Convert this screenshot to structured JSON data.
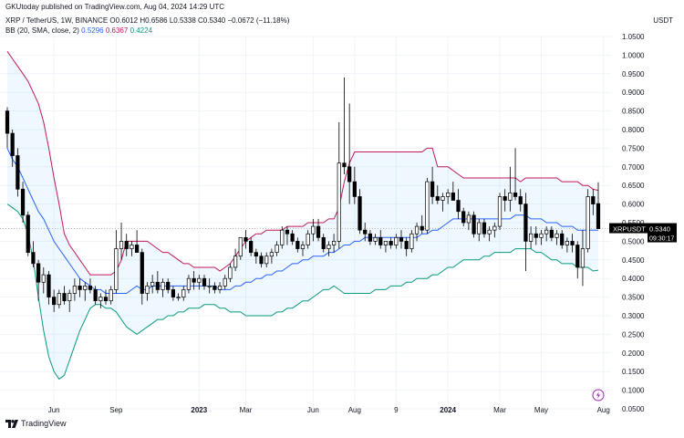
{
  "header": {
    "publish_line": "GKUtoday published on TradingView.com, Aug 04, 2024 14:29 UTC",
    "symbol": "XRP / TetherUS, 1W, BINANCE",
    "o_label": "O",
    "o_value": "0.6012",
    "h_label": "H",
    "h_value": "0.6586",
    "l_label": "L",
    "l_value": "0.5338",
    "c_label": "C",
    "c_value": "0.5340",
    "change": "−0.0672 (−11.18%)",
    "bb_label": "BB (20, SMA, close, 2)",
    "bb_basis": "0.5296",
    "bb_upper": "0.6367",
    "bb_lower": "0.4224",
    "currency": "USDT"
  },
  "footer": {
    "brand": "TradingView"
  },
  "colors": {
    "bb_basis": "#2962ff",
    "bb_upper": "#c2185b",
    "bb_lower": "#089981",
    "bb_fill": "#2196f3",
    "candle_up": "#ffffff",
    "candle_down": "#000000"
  },
  "icons": {
    "time_icon": "lightning-bolt-icon",
    "footer_logo": "tradingview-logo-icon"
  },
  "chart_data": {
    "type": "candlestick",
    "title": "XRP / TetherUS, 1W, BINANCE",
    "timeframe": "1W",
    "x_ticks": [
      "Jun",
      "Sep",
      "2023",
      "Mar",
      "Jun",
      "Aug",
      "9",
      "2024",
      "Mar",
      "May",
      "Aug"
    ],
    "y_ticks": [
      "1.0500",
      "1.0000",
      "0.9500",
      "0.9000",
      "0.8500",
      "0.8000",
      "0.7500",
      "0.7000",
      "0.6500",
      "0.6000",
      "0.5500",
      "0.5000",
      "0.4500",
      "0.4000",
      "0.3500",
      "0.3000",
      "0.2500",
      "0.2000",
      "0.1500",
      "0.1000",
      "0.0500"
    ],
    "ylim": [
      0.05,
      1.05
    ],
    "price_label": {
      "symbol": "XRPUSDT",
      "price": "0.5340",
      "countdown": "09:30:17"
    },
    "candles": [
      {
        "o": 0.85,
        "h": 0.86,
        "l": 0.75,
        "c": 0.79
      },
      {
        "o": 0.79,
        "h": 0.8,
        "l": 0.7,
        "c": 0.73
      },
      {
        "o": 0.73,
        "h": 0.75,
        "l": 0.62,
        "c": 0.64
      },
      {
        "o": 0.64,
        "h": 0.66,
        "l": 0.55,
        "c": 0.57
      },
      {
        "o": 0.57,
        "h": 0.58,
        "l": 0.46,
        "c": 0.47
      },
      {
        "o": 0.47,
        "h": 0.5,
        "l": 0.43,
        "c": 0.44
      },
      {
        "o": 0.44,
        "h": 0.45,
        "l": 0.34,
        "c": 0.39
      },
      {
        "o": 0.39,
        "h": 0.43,
        "l": 0.36,
        "c": 0.41
      },
      {
        "o": 0.41,
        "h": 0.42,
        "l": 0.33,
        "c": 0.35
      },
      {
        "o": 0.35,
        "h": 0.37,
        "l": 0.31,
        "c": 0.33
      },
      {
        "o": 0.33,
        "h": 0.37,
        "l": 0.32,
        "c": 0.36
      },
      {
        "o": 0.36,
        "h": 0.38,
        "l": 0.33,
        "c": 0.34
      },
      {
        "o": 0.34,
        "h": 0.37,
        "l": 0.31,
        "c": 0.36
      },
      {
        "o": 0.36,
        "h": 0.4,
        "l": 0.34,
        "c": 0.38
      },
      {
        "o": 0.38,
        "h": 0.4,
        "l": 0.35,
        "c": 0.37
      },
      {
        "o": 0.37,
        "h": 0.39,
        "l": 0.34,
        "c": 0.38
      },
      {
        "o": 0.38,
        "h": 0.4,
        "l": 0.36,
        "c": 0.37
      },
      {
        "o": 0.37,
        "h": 0.38,
        "l": 0.33,
        "c": 0.34
      },
      {
        "o": 0.34,
        "h": 0.36,
        "l": 0.32,
        "c": 0.35
      },
      {
        "o": 0.35,
        "h": 0.37,
        "l": 0.33,
        "c": 0.34
      },
      {
        "o": 0.34,
        "h": 0.38,
        "l": 0.33,
        "c": 0.37
      },
      {
        "o": 0.37,
        "h": 0.53,
        "l": 0.36,
        "c": 0.48
      },
      {
        "o": 0.48,
        "h": 0.55,
        "l": 0.45,
        "c": 0.5
      },
      {
        "o": 0.5,
        "h": 0.52,
        "l": 0.46,
        "c": 0.48
      },
      {
        "o": 0.48,
        "h": 0.5,
        "l": 0.46,
        "c": 0.49
      },
      {
        "o": 0.49,
        "h": 0.53,
        "l": 0.47,
        "c": 0.47
      },
      {
        "o": 0.47,
        "h": 0.48,
        "l": 0.33,
        "c": 0.36
      },
      {
        "o": 0.36,
        "h": 0.39,
        "l": 0.34,
        "c": 0.38
      },
      {
        "o": 0.38,
        "h": 0.41,
        "l": 0.36,
        "c": 0.39
      },
      {
        "o": 0.39,
        "h": 0.42,
        "l": 0.36,
        "c": 0.37
      },
      {
        "o": 0.37,
        "h": 0.4,
        "l": 0.35,
        "c": 0.39
      },
      {
        "o": 0.39,
        "h": 0.4,
        "l": 0.36,
        "c": 0.37
      },
      {
        "o": 0.37,
        "h": 0.38,
        "l": 0.34,
        "c": 0.35
      },
      {
        "o": 0.35,
        "h": 0.36,
        "l": 0.34,
        "c": 0.35
      },
      {
        "o": 0.35,
        "h": 0.38,
        "l": 0.34,
        "c": 0.37
      },
      {
        "o": 0.37,
        "h": 0.41,
        "l": 0.36,
        "c": 0.4
      },
      {
        "o": 0.4,
        "h": 0.42,
        "l": 0.37,
        "c": 0.39
      },
      {
        "o": 0.39,
        "h": 0.41,
        "l": 0.37,
        "c": 0.4
      },
      {
        "o": 0.4,
        "h": 0.41,
        "l": 0.37,
        "c": 0.38
      },
      {
        "o": 0.38,
        "h": 0.4,
        "l": 0.36,
        "c": 0.38
      },
      {
        "o": 0.38,
        "h": 0.39,
        "l": 0.36,
        "c": 0.37
      },
      {
        "o": 0.37,
        "h": 0.39,
        "l": 0.36,
        "c": 0.38
      },
      {
        "o": 0.38,
        "h": 0.41,
        "l": 0.37,
        "c": 0.4
      },
      {
        "o": 0.4,
        "h": 0.44,
        "l": 0.39,
        "c": 0.43
      },
      {
        "o": 0.43,
        "h": 0.48,
        "l": 0.42,
        "c": 0.46
      },
      {
        "o": 0.46,
        "h": 0.51,
        "l": 0.45,
        "c": 0.51
      },
      {
        "o": 0.51,
        "h": 0.53,
        "l": 0.48,
        "c": 0.5
      },
      {
        "o": 0.5,
        "h": 0.51,
        "l": 0.46,
        "c": 0.47
      },
      {
        "o": 0.47,
        "h": 0.48,
        "l": 0.44,
        "c": 0.46
      },
      {
        "o": 0.46,
        "h": 0.47,
        "l": 0.43,
        "c": 0.44
      },
      {
        "o": 0.44,
        "h": 0.47,
        "l": 0.43,
        "c": 0.46
      },
      {
        "o": 0.46,
        "h": 0.48,
        "l": 0.44,
        "c": 0.47
      },
      {
        "o": 0.47,
        "h": 0.5,
        "l": 0.46,
        "c": 0.49
      },
      {
        "o": 0.49,
        "h": 0.54,
        "l": 0.48,
        "c": 0.53
      },
      {
        "o": 0.53,
        "h": 0.54,
        "l": 0.49,
        "c": 0.52
      },
      {
        "o": 0.52,
        "h": 0.53,
        "l": 0.49,
        "c": 0.5
      },
      {
        "o": 0.5,
        "h": 0.51,
        "l": 0.47,
        "c": 0.48
      },
      {
        "o": 0.48,
        "h": 0.5,
        "l": 0.46,
        "c": 0.49
      },
      {
        "o": 0.49,
        "h": 0.53,
        "l": 0.48,
        "c": 0.52
      },
      {
        "o": 0.52,
        "h": 0.56,
        "l": 0.5,
        "c": 0.54
      },
      {
        "o": 0.54,
        "h": 0.56,
        "l": 0.5,
        "c": 0.51
      },
      {
        "o": 0.51,
        "h": 0.52,
        "l": 0.47,
        "c": 0.48
      },
      {
        "o": 0.48,
        "h": 0.5,
        "l": 0.46,
        "c": 0.49
      },
      {
        "o": 0.49,
        "h": 0.52,
        "l": 0.47,
        "c": 0.5
      },
      {
        "o": 0.5,
        "h": 0.82,
        "l": 0.48,
        "c": 0.71
      },
      {
        "o": 0.71,
        "h": 0.94,
        "l": 0.68,
        "c": 0.7
      },
      {
        "o": 0.7,
        "h": 0.87,
        "l": 0.6,
        "c": 0.66
      },
      {
        "o": 0.66,
        "h": 0.7,
        "l": 0.6,
        "c": 0.62
      },
      {
        "o": 0.62,
        "h": 0.64,
        "l": 0.52,
        "c": 0.53
      },
      {
        "o": 0.53,
        "h": 0.55,
        "l": 0.5,
        "c": 0.52
      },
      {
        "o": 0.52,
        "h": 0.53,
        "l": 0.49,
        "c": 0.5
      },
      {
        "o": 0.5,
        "h": 0.52,
        "l": 0.49,
        "c": 0.51
      },
      {
        "o": 0.51,
        "h": 0.53,
        "l": 0.48,
        "c": 0.49
      },
      {
        "o": 0.49,
        "h": 0.5,
        "l": 0.47,
        "c": 0.5
      },
      {
        "o": 0.5,
        "h": 0.51,
        "l": 0.48,
        "c": 0.49
      },
      {
        "o": 0.49,
        "h": 0.52,
        "l": 0.48,
        "c": 0.51
      },
      {
        "o": 0.51,
        "h": 0.53,
        "l": 0.48,
        "c": 0.5
      },
      {
        "o": 0.5,
        "h": 0.51,
        "l": 0.46,
        "c": 0.48
      },
      {
        "o": 0.48,
        "h": 0.53,
        "l": 0.47,
        "c": 0.52
      },
      {
        "o": 0.52,
        "h": 0.55,
        "l": 0.5,
        "c": 0.54
      },
      {
        "o": 0.54,
        "h": 0.57,
        "l": 0.52,
        "c": 0.53
      },
      {
        "o": 0.53,
        "h": 0.67,
        "l": 0.52,
        "c": 0.66
      },
      {
        "o": 0.66,
        "h": 0.7,
        "l": 0.6,
        "c": 0.62
      },
      {
        "o": 0.62,
        "h": 0.65,
        "l": 0.6,
        "c": 0.61
      },
      {
        "o": 0.61,
        "h": 0.63,
        "l": 0.58,
        "c": 0.62
      },
      {
        "o": 0.62,
        "h": 0.64,
        "l": 0.6,
        "c": 0.63
      },
      {
        "o": 0.63,
        "h": 0.66,
        "l": 0.61,
        "c": 0.61
      },
      {
        "o": 0.61,
        "h": 0.64,
        "l": 0.56,
        "c": 0.58
      },
      {
        "o": 0.58,
        "h": 0.59,
        "l": 0.54,
        "c": 0.55
      },
      {
        "o": 0.55,
        "h": 0.58,
        "l": 0.53,
        "c": 0.57
      },
      {
        "o": 0.57,
        "h": 0.58,
        "l": 0.51,
        "c": 0.52
      },
      {
        "o": 0.52,
        "h": 0.56,
        "l": 0.5,
        "c": 0.55
      },
      {
        "o": 0.55,
        "h": 0.56,
        "l": 0.51,
        "c": 0.52
      },
      {
        "o": 0.52,
        "h": 0.54,
        "l": 0.5,
        "c": 0.53
      },
      {
        "o": 0.53,
        "h": 0.55,
        "l": 0.51,
        "c": 0.54
      },
      {
        "o": 0.54,
        "h": 0.63,
        "l": 0.53,
        "c": 0.62
      },
      {
        "o": 0.62,
        "h": 0.64,
        "l": 0.58,
        "c": 0.61
      },
      {
        "o": 0.61,
        "h": 0.7,
        "l": 0.58,
        "c": 0.63
      },
      {
        "o": 0.63,
        "h": 0.75,
        "l": 0.61,
        "c": 0.62
      },
      {
        "o": 0.62,
        "h": 0.64,
        "l": 0.58,
        "c": 0.6
      },
      {
        "o": 0.6,
        "h": 0.63,
        "l": 0.42,
        "c": 0.5
      },
      {
        "o": 0.5,
        "h": 0.54,
        "l": 0.48,
        "c": 0.52
      },
      {
        "o": 0.52,
        "h": 0.54,
        "l": 0.49,
        "c": 0.51
      },
      {
        "o": 0.51,
        "h": 0.53,
        "l": 0.49,
        "c": 0.52
      },
      {
        "o": 0.52,
        "h": 0.54,
        "l": 0.5,
        "c": 0.53
      },
      {
        "o": 0.53,
        "h": 0.54,
        "l": 0.5,
        "c": 0.51
      },
      {
        "o": 0.51,
        "h": 0.53,
        "l": 0.49,
        "c": 0.52
      },
      {
        "o": 0.52,
        "h": 0.53,
        "l": 0.48,
        "c": 0.49
      },
      {
        "o": 0.49,
        "h": 0.51,
        "l": 0.47,
        "c": 0.5
      },
      {
        "o": 0.5,
        "h": 0.52,
        "l": 0.47,
        "c": 0.49
      },
      {
        "o": 0.49,
        "h": 0.5,
        "l": 0.4,
        "c": 0.43
      },
      {
        "o": 0.43,
        "h": 0.53,
        "l": 0.38,
        "c": 0.48
      },
      {
        "o": 0.48,
        "h": 0.64,
        "l": 0.47,
        "c": 0.62
      },
      {
        "o": 0.62,
        "h": 0.64,
        "l": 0.57,
        "c": 0.6
      },
      {
        "o": 0.6012,
        "h": 0.6586,
        "l": 0.5338,
        "c": 0.534
      }
    ],
    "bb_basis": [
      0.75,
      0.72,
      0.7,
      0.67,
      0.64,
      0.61,
      0.58,
      0.56,
      0.53,
      0.5,
      0.48,
      0.46,
      0.44,
      0.42,
      0.4,
      0.39,
      0.38,
      0.37,
      0.37,
      0.36,
      0.36,
      0.36,
      0.36,
      0.36,
      0.37,
      0.38,
      0.37,
      0.37,
      0.38,
      0.38,
      0.38,
      0.38,
      0.38,
      0.38,
      0.38,
      0.38,
      0.38,
      0.38,
      0.38,
      0.38,
      0.38,
      0.37,
      0.37,
      0.37,
      0.38,
      0.38,
      0.39,
      0.39,
      0.4,
      0.4,
      0.41,
      0.41,
      0.42,
      0.42,
      0.43,
      0.44,
      0.44,
      0.45,
      0.45,
      0.46,
      0.46,
      0.46,
      0.47,
      0.47,
      0.48,
      0.49,
      0.49,
      0.5,
      0.5,
      0.51,
      0.51,
      0.51,
      0.51,
      0.51,
      0.51,
      0.51,
      0.51,
      0.51,
      0.51,
      0.51,
      0.52,
      0.52,
      0.53,
      0.53,
      0.54,
      0.55,
      0.56,
      0.56,
      0.56,
      0.56,
      0.56,
      0.56,
      0.56,
      0.56,
      0.56,
      0.56,
      0.56,
      0.56,
      0.57,
      0.57,
      0.57,
      0.56,
      0.56,
      0.56,
      0.55,
      0.55,
      0.55,
      0.54,
      0.54,
      0.54,
      0.53,
      0.53,
      0.53,
      0.53,
      0.5296
    ],
    "bb_upper": [
      1.01,
      0.99,
      0.97,
      0.95,
      0.93,
      0.9,
      0.87,
      0.82,
      0.75,
      0.67,
      0.6,
      0.52,
      0.49,
      0.47,
      0.45,
      0.43,
      0.41,
      0.41,
      0.41,
      0.41,
      0.41,
      0.42,
      0.45,
      0.5,
      0.5,
      0.5,
      0.5,
      0.5,
      0.49,
      0.48,
      0.47,
      0.47,
      0.46,
      0.45,
      0.44,
      0.44,
      0.43,
      0.43,
      0.43,
      0.43,
      0.43,
      0.42,
      0.43,
      0.44,
      0.46,
      0.48,
      0.5,
      0.51,
      0.52,
      0.52,
      0.53,
      0.53,
      0.53,
      0.53,
      0.54,
      0.54,
      0.54,
      0.54,
      0.55,
      0.55,
      0.55,
      0.55,
      0.56,
      0.56,
      0.59,
      0.66,
      0.71,
      0.74,
      0.74,
      0.74,
      0.74,
      0.74,
      0.74,
      0.74,
      0.74,
      0.74,
      0.74,
      0.74,
      0.74,
      0.74,
      0.74,
      0.75,
      0.75,
      0.7,
      0.7,
      0.7,
      0.69,
      0.68,
      0.67,
      0.67,
      0.67,
      0.67,
      0.67,
      0.67,
      0.67,
      0.67,
      0.67,
      0.67,
      0.67,
      0.66,
      0.67,
      0.67,
      0.67,
      0.67,
      0.67,
      0.67,
      0.67,
      0.66,
      0.66,
      0.66,
      0.66,
      0.65,
      0.65,
      0.64,
      0.6367
    ],
    "bb_lower": [
      0.6,
      0.59,
      0.58,
      0.56,
      0.52,
      0.45,
      0.35,
      0.26,
      0.19,
      0.15,
      0.13,
      0.14,
      0.18,
      0.22,
      0.26,
      0.29,
      0.32,
      0.33,
      0.33,
      0.32,
      0.32,
      0.31,
      0.29,
      0.27,
      0.26,
      0.25,
      0.26,
      0.27,
      0.28,
      0.29,
      0.29,
      0.3,
      0.3,
      0.31,
      0.31,
      0.32,
      0.32,
      0.32,
      0.33,
      0.33,
      0.33,
      0.32,
      0.32,
      0.31,
      0.31,
      0.31,
      0.3,
      0.3,
      0.3,
      0.3,
      0.3,
      0.3,
      0.31,
      0.31,
      0.32,
      0.32,
      0.33,
      0.34,
      0.34,
      0.35,
      0.36,
      0.37,
      0.37,
      0.38,
      0.37,
      0.36,
      0.36,
      0.36,
      0.36,
      0.36,
      0.36,
      0.37,
      0.37,
      0.37,
      0.38,
      0.38,
      0.38,
      0.39,
      0.39,
      0.4,
      0.4,
      0.4,
      0.41,
      0.41,
      0.42,
      0.43,
      0.43,
      0.44,
      0.45,
      0.45,
      0.45,
      0.45,
      0.46,
      0.46,
      0.47,
      0.47,
      0.47,
      0.47,
      0.48,
      0.48,
      0.48,
      0.48,
      0.47,
      0.47,
      0.46,
      0.45,
      0.45,
      0.44,
      0.44,
      0.44,
      0.43,
      0.43,
      0.43,
      0.42,
      0.4224
    ]
  }
}
